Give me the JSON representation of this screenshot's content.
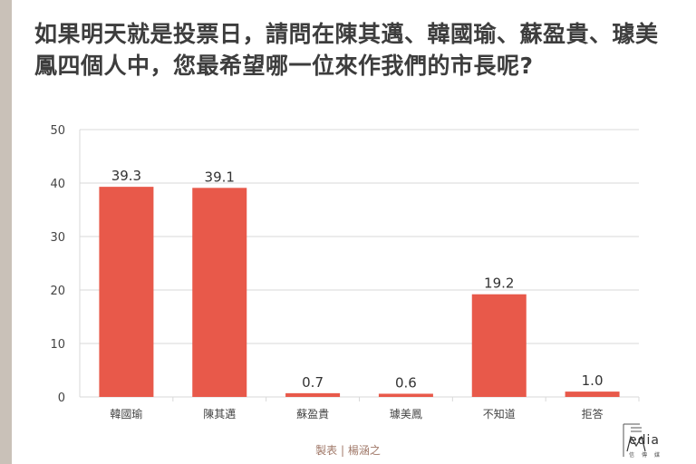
{
  "title": "如果明天就是投票日，請問在陳其邁、韓國瑜、蘇盈貴、璩美鳳四個人中，您最希望哪一位來作我們的市長呢?",
  "credit": {
    "label": "製表",
    "separator": "|",
    "author": "楊涵之"
  },
  "logo": {
    "text": "edia",
    "subtitle": "信傳媒"
  },
  "colors": {
    "bar": "#e8594a",
    "grid": "#d9d9d9",
    "axis_text": "#444444"
  },
  "chart_data": {
    "type": "bar",
    "categories": [
      "韓國瑜",
      "陳其邁",
      "蘇盈貴",
      "璩美鳳",
      "不知道",
      "拒答"
    ],
    "values": [
      39.3,
      39.1,
      0.7,
      0.6,
      19.2,
      1.0
    ],
    "data_labels": [
      "39.3",
      "39.1",
      "0.7",
      "0.6",
      "19.2",
      "1.0"
    ],
    "ylim": [
      0,
      50
    ],
    "yticks": [
      0,
      10,
      20,
      30,
      40,
      50
    ],
    "grid": true,
    "legend": "none"
  }
}
